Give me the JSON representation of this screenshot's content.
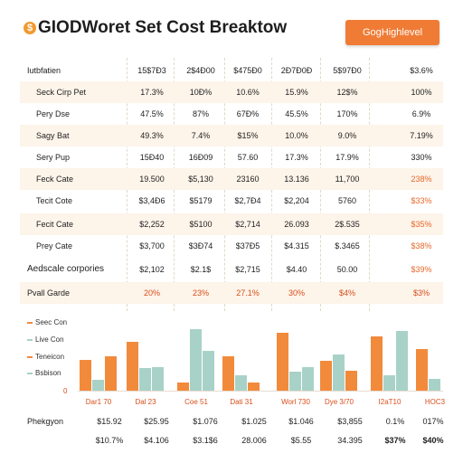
{
  "header": {
    "logo_glyph": "$",
    "title": "GIODWoret Set Cost Breaktow",
    "highlight_button": "GogHighlevel"
  },
  "colors": {
    "accent": "#f07b35",
    "orange_bar": "#f28a3c",
    "teal_bar": "#a8d2c8",
    "row_shade": "#fdf4ea",
    "negative_text": "#e8672a"
  },
  "table": {
    "header": [
      "Iutbfatien",
      "15$7Ð3",
      "2$4Ð00",
      "$475Ð0",
      "2Ð7Ð0Ð",
      "5$97Ð0",
      "$3.6%"
    ],
    "rows": [
      {
        "label": "Seck Cirp Pet",
        "values": [
          "17.3%",
          "10Ð%",
          "10.6%",
          "15.9%",
          "12$%",
          "100%"
        ]
      },
      {
        "label": "Pery Dse",
        "values": [
          "47.5%",
          "87%",
          "67Ð%",
          "45.5%",
          "170%",
          "6.9%"
        ]
      },
      {
        "label": "Sagy Bat",
        "values": [
          "49.3%",
          "7.4%",
          "$15%",
          "10.0%",
          "9.0%",
          "7.19%"
        ]
      },
      {
        "label": "Sery Pup",
        "values": [
          "15Ð40",
          "16Ð09",
          "57.60",
          "17.3%",
          "17.9%",
          "330%"
        ]
      },
      {
        "label": "Feck Cate",
        "values": [
          "19.500",
          "$5,130",
          "23160",
          "13.136",
          "11,700",
          "238%"
        ]
      },
      {
        "label": "Tecit Cote",
        "values": [
          "$3,4Ð6",
          "$5179",
          "$2,7Ð4",
          "$2,204",
          "5760",
          "$33%"
        ]
      },
      {
        "label": "Fecit Cate",
        "values": [
          "$2,252",
          "$5100",
          "$2,714",
          "26.093",
          "2$.535",
          "$35%"
        ]
      },
      {
        "label": "Prey Cate",
        "values": [
          "$3,700",
          "$3Ð74",
          "$37Ð5",
          "$4.315",
          "$.3465",
          "$38%"
        ]
      },
      {
        "label": "Aedscale corpories",
        "values": [
          "$2,102",
          "$2.1$",
          "$2,715",
          "$4.40",
          "50.00",
          "$39%"
        ]
      },
      {
        "label": "Pvall Garde",
        "values": [
          "20%",
          "23%",
          "27.1%",
          "30%",
          "$4%",
          "$3%"
        ]
      }
    ]
  },
  "chart_data": {
    "type": "bar",
    "legend": [
      "Seec Con",
      "Live Con",
      "Teneicon",
      "Bsbison"
    ],
    "y_tick": "0",
    "categories": [
      "Dar1 70",
      "Dal 23",
      "Coe 51",
      "Dati 31",
      "Worl 730",
      "Dye 3/70",
      "I2aT10",
      "HOC3"
    ],
    "series": [
      {
        "values": [
          34,
          54,
          9,
          38,
          64,
          33,
          60,
          46
        ]
      },
      {
        "values": [
          12,
          25,
          68,
          17,
          21,
          40,
          17,
          13
        ]
      },
      {
        "values": [
          38,
          null,
          null,
          9,
          null,
          22,
          null,
          null
        ]
      },
      {
        "values": [
          null,
          26,
          44,
          null,
          26,
          null,
          66,
          null
        ]
      }
    ]
  },
  "footer": {
    "rows": [
      {
        "label": "Phekgyon",
        "values": [
          "$15.92",
          "$25.95",
          "$1.076",
          "$1.025",
          "$1.046",
          "$3,855",
          "0.1%",
          "017%"
        ]
      },
      {
        "label": "",
        "values": [
          "$10.7%",
          "$4.106",
          "$3.1$6",
          "28.006",
          "$5.55",
          "34.395",
          "$37%",
          "$40%"
        ]
      }
    ]
  }
}
